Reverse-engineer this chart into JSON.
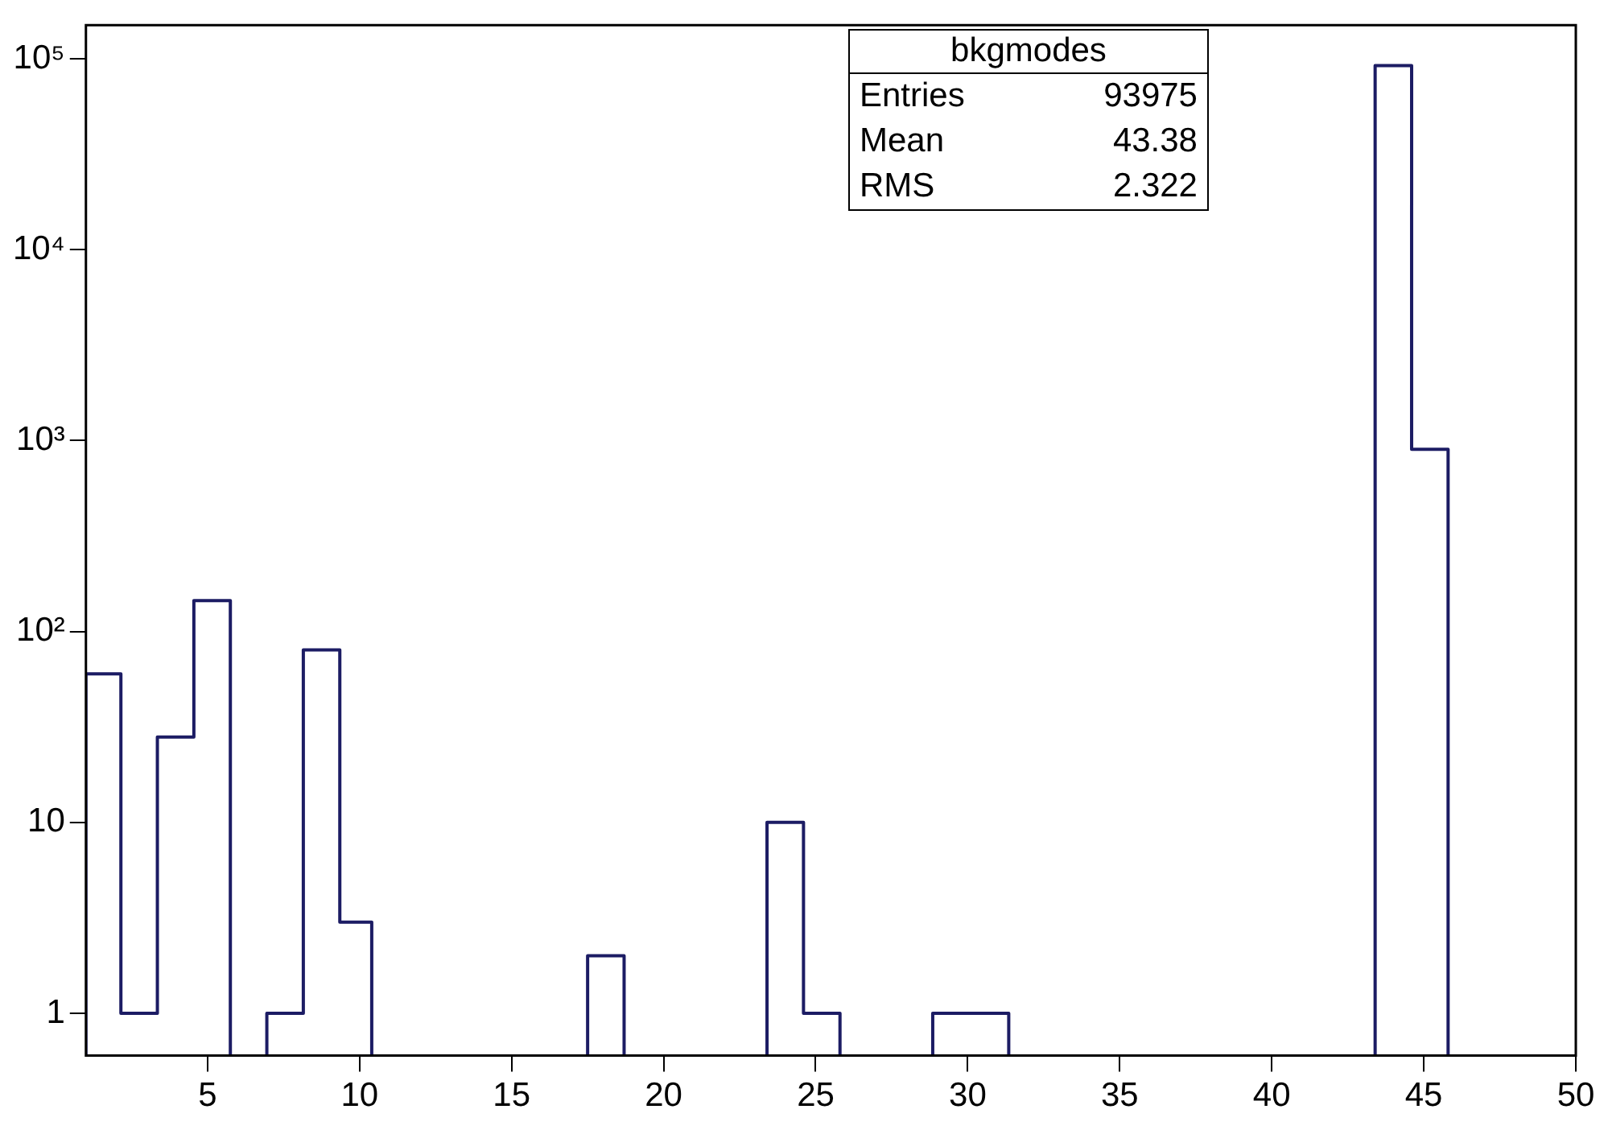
{
  "chart_data": {
    "type": "histogram",
    "bins": [
      1,
      2.15,
      3.35,
      4.55,
      5.75,
      6.95,
      8.15,
      9.35,
      10.4,
      17.5,
      18.7,
      23.4,
      24.6,
      25.8,
      28.85,
      30.1,
      31.35,
      43.4,
      44.6,
      45.8
    ],
    "values": [
      60,
      1,
      28,
      145,
      null,
      1,
      80,
      3,
      null,
      2,
      null,
      10,
      1,
      null,
      1,
      1,
      null,
      92000,
      900
    ],
    "color": "#1c1c64",
    "log": true,
    "xlim": [
      1,
      50
    ],
    "xticks": [
      5,
      10,
      15,
      20,
      25,
      30,
      35,
      40,
      45,
      50
    ],
    "ylim": [
      0.6,
      150000
    ],
    "yticks": [
      1,
      10,
      {
        "value": 100,
        "label": "10²"
      },
      {
        "value": 1000,
        "label": "10³"
      },
      {
        "value": 10000,
        "label": "10⁴"
      },
      {
        "value": 100000,
        "label": "10⁵"
      }
    ],
    "grid": false,
    "legend": false,
    "annotations": [
      "bkgmodes",
      "Entries",
      "93975",
      "Mean",
      "43.38",
      "RMS",
      "2.322"
    ]
  }
}
